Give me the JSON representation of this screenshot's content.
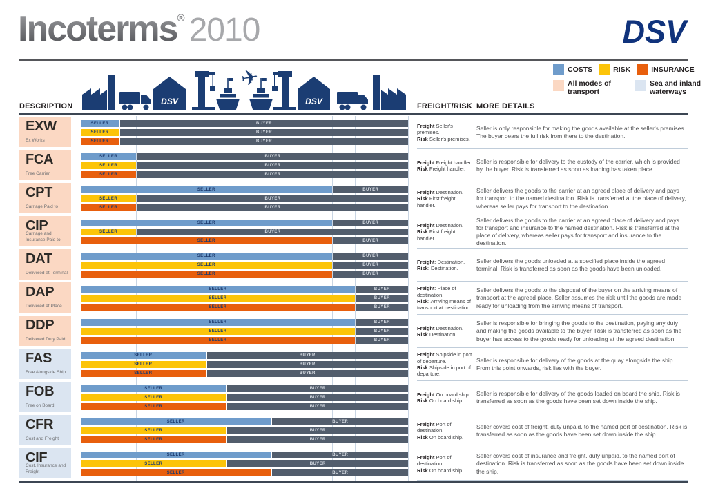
{
  "header": {
    "title": "Incoterms",
    "reg": "®",
    "year": "2010",
    "brand": "DSV"
  },
  "legend": {
    "series": [
      {
        "id": "costs",
        "label": "COSTS",
        "color": "#6f9ccb"
      },
      {
        "id": "risk",
        "label": "RISK",
        "color": "#fcc409"
      },
      {
        "id": "insurance",
        "label": "INSURANCE",
        "color": "#e85f0d"
      }
    ],
    "modes": [
      {
        "id": "all",
        "label": "All modes of transport",
        "color": "#fbd8c3"
      },
      {
        "id": "sea",
        "label": "Sea and inland waterways",
        "color": "#dbe5f1"
      }
    ]
  },
  "columns": {
    "description": "DESCRIPTION",
    "freight_risk": "FREIGHT/RISK",
    "more_details": "MORE DETAILS"
  },
  "bar_labels": {
    "seller": "SELLER",
    "buyer": "BUYER"
  },
  "stage_icons": [
    "factory",
    "truck",
    "dsv-warehouse",
    "port-crane",
    "ship",
    "airplane",
    "ship",
    "port-crane",
    "dsv-warehouse",
    "truck",
    "factory"
  ],
  "warehouse_icon_text": "DSV",
  "stage_boundaries_pct": [
    11.6,
    16.9,
    38.1,
    44.4,
    58.1,
    76.7,
    83.7
  ],
  "terms": [
    {
      "code": "EXW",
      "name": "Ex Works",
      "mode": "all",
      "seller_pct": {
        "costs": 11.6,
        "risk": 11.6,
        "insurance": 11.6
      },
      "freight_risk": [
        [
          "Freight",
          " Seller's premises."
        ],
        [
          "Risk",
          " Seller's premises."
        ]
      ],
      "details": "Seller is only responsible for making the goods available at the seller's premises. The buyer bears the full risk from there to the destination."
    },
    {
      "code": "FCA",
      "name": "Free Carrier",
      "mode": "all",
      "seller_pct": {
        "costs": 16.9,
        "risk": 16.9,
        "insurance": 16.9
      },
      "freight_risk": [
        [
          "Freight",
          " Freight handler."
        ],
        [
          "Risk",
          " Freight handler."
        ]
      ],
      "details": "Seller is responsible for delivery to the custody of the carrier, which is provided by the buyer. Risk is transferred as soon as loading has taken place."
    },
    {
      "code": "CPT",
      "name": "Carriage Paid to",
      "mode": "all",
      "seller_pct": {
        "costs": 76.7,
        "risk": 16.9,
        "insurance": 16.9
      },
      "freight_risk": [
        [
          "Freight",
          " Destination."
        ],
        [
          "Risk",
          " First freight handler."
        ]
      ],
      "details": "Seller delivers the goods to the carrier at an agreed place of delivery and pays for transport to the named destination. Risk is transferred at the place of delivery, whereas seller pays for transport to the destination."
    },
    {
      "code": "CIP",
      "name": "Carriage and Insurance Paid to",
      "mode": "all",
      "seller_pct": {
        "costs": 76.7,
        "risk": 16.9,
        "insurance": 76.7
      },
      "freight_risk": [
        [
          "Freight",
          " Destination."
        ],
        [
          "Risk",
          " First freight handler."
        ]
      ],
      "details": "Seller delivers the goods to the carrier at an agreed place of delivery and pays for transport and insurance to the named destination. Risk is transferred at the place of delivery, whereas seller pays for transport and insurance to the destination."
    },
    {
      "code": "DAT",
      "name": "Delivered at Terminal",
      "mode": "all",
      "seller_pct": {
        "costs": 76.7,
        "risk": 76.7,
        "insurance": 76.7
      },
      "freight_risk": [
        [
          "Freight",
          ": Destination."
        ],
        [
          "Risk",
          ": Destination."
        ]
      ],
      "details": "Seller delivers the goods unloaded at a specified place inside the agreed terminal. Risk is transferred as soon as the goods have been unloaded."
    },
    {
      "code": "DAP",
      "name": "Delivered at Place",
      "mode": "all",
      "seller_pct": {
        "costs": 83.7,
        "risk": 83.7,
        "insurance": 83.7
      },
      "freight_risk": [
        [
          "Freight",
          ": Place of destination."
        ],
        [
          "Risk",
          ": Arriving means of transport at destination."
        ]
      ],
      "details": "Seller delivers the goods to the disposal of the buyer on the arriving means of transport at the agreed place. Seller assumes the risk until the goods are made ready for unloading from the arriving means of transport."
    },
    {
      "code": "DDP",
      "name": "Delivered Duty Paid",
      "mode": "all",
      "seller_pct": {
        "costs": 83.7,
        "risk": 83.7,
        "insurance": 83.7
      },
      "freight_risk": [
        [
          "Freight",
          " Destination."
        ],
        [
          "Risk",
          " Destination."
        ]
      ],
      "details": "Seller is responsible for bringing the goods to the destination, paying any duty and making the goods available to the buyer. Risk is transferred as soon as the buyer has access to the goods ready for unloading at the agreed destination."
    },
    {
      "code": "FAS",
      "name": "Free Alongside Ship",
      "mode": "sea",
      "seller_pct": {
        "costs": 38.1,
        "risk": 38.1,
        "insurance": 38.1
      },
      "freight_risk": [
        [
          "Freight",
          " Shipside in port of departure."
        ],
        [
          "Risk",
          " Shipside in port of departure."
        ]
      ],
      "details": "Seller is responsible for delivery of the goods at the quay alongside the ship. From this point onwards, risk lies with the buyer."
    },
    {
      "code": "FOB",
      "name": "Free on Board",
      "mode": "sea",
      "seller_pct": {
        "costs": 44.4,
        "risk": 44.4,
        "insurance": 44.4
      },
      "freight_risk": [
        [
          "Freight",
          " On board ship."
        ],
        [
          "Risk",
          " On board ship."
        ]
      ],
      "details": "Seller is responsible for delivery of the goods loaded on board the ship. Risk is transferred as soon as the goods have been set down inside the ship."
    },
    {
      "code": "CFR",
      "name": "Cost and Freight",
      "mode": "sea",
      "seller_pct": {
        "costs": 58.1,
        "risk": 44.4,
        "insurance": 44.4
      },
      "freight_risk": [
        [
          "Freight",
          " Port of destination."
        ],
        [
          "Risk",
          " On board ship."
        ]
      ],
      "details": "Seller covers cost of freight, duty unpaid, to the named port of destination. Risk is transferred as soon as the goods have been set down inside the ship."
    },
    {
      "code": "CIF",
      "name": "Cost, Insurance and Freight",
      "mode": "sea",
      "seller_pct": {
        "costs": 58.1,
        "risk": 44.4,
        "insurance": 58.1
      },
      "freight_risk": [
        [
          "Freight",
          " Port of destination."
        ],
        [
          "Risk",
          " On board ship."
        ]
      ],
      "details": "Seller covers cost of insurance and freight, duty unpaid, to the named port of destination. Risk is transferred as soon as the goods have been set down inside the ship."
    }
  ]
}
